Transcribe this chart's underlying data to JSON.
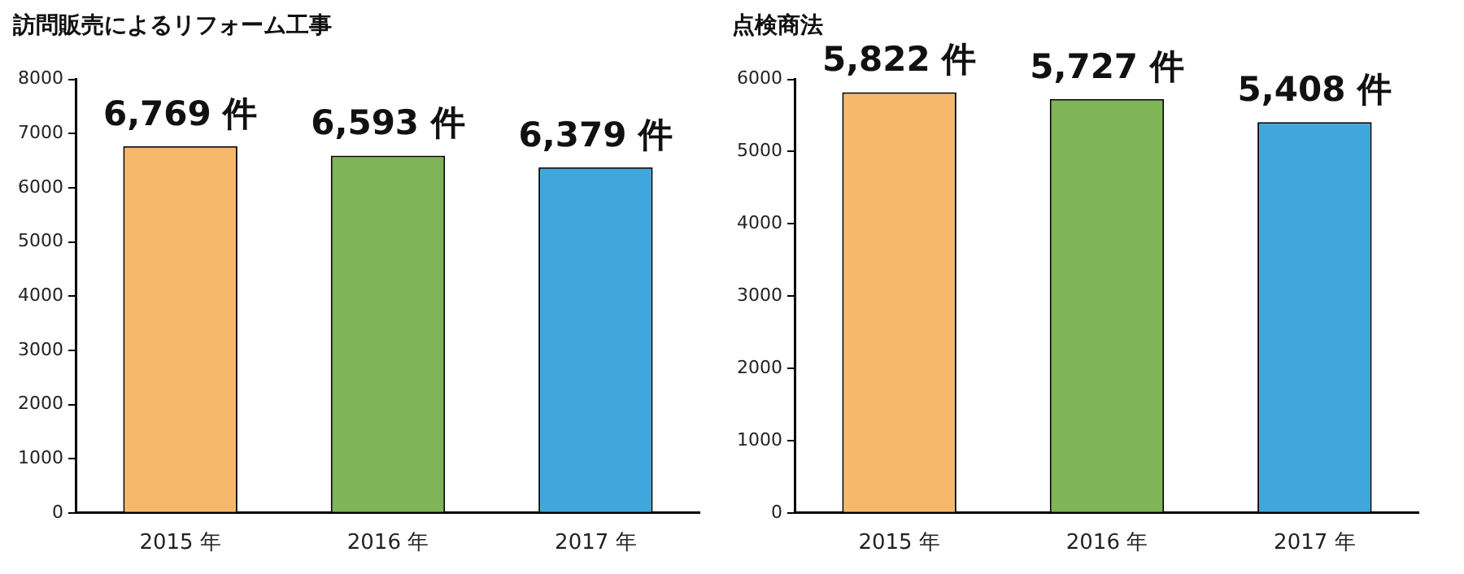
{
  "chart_data": [
    {
      "type": "bar",
      "title": "訪問販売によるリフォーム工事",
      "categories": [
        "2015 年",
        "2016 年",
        "2017 年"
      ],
      "values": [
        6769,
        6593,
        6379
      ],
      "colors": [
        "#f6b86b",
        "#7fb457",
        "#3fa7dc"
      ],
      "value_labels": [
        "6,769 件",
        "6,593 件",
        "6,379 件"
      ],
      "ylim": [
        0,
        8000
      ],
      "yticks": [
        0,
        1000,
        2000,
        3000,
        4000,
        5000,
        6000,
        7000,
        8000
      ]
    },
    {
      "type": "bar",
      "title": "点検商法",
      "categories": [
        "2015 年",
        "2016 年",
        "2017 年"
      ],
      "values": [
        5822,
        5727,
        5408
      ],
      "colors": [
        "#f6b86b",
        "#7fb457",
        "#3fa7dc"
      ],
      "value_labels": [
        "5,822 件",
        "5,727 件",
        "5,408 件"
      ],
      "ylim": [
        0,
        6000
      ],
      "yticks": [
        0,
        1000,
        2000,
        3000,
        4000,
        5000,
        6000
      ]
    }
  ]
}
